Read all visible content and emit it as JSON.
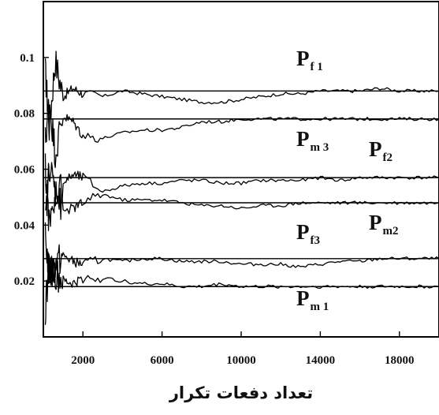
{
  "chart_data": {
    "type": "line",
    "title": "",
    "xlabel": "تعداد دفعات تکرار",
    "ylabel": "",
    "xlim": [
      0,
      20000
    ],
    "ylim": [
      0,
      0.12
    ],
    "x_ticks": [
      2000,
      6000,
      10000,
      14000,
      18000
    ],
    "y_ticks": [
      0.02,
      0.04,
      0.06,
      0.08,
      0.1
    ],
    "x_tick_labels": [
      "2000",
      "6000",
      "10000",
      "14000",
      "18000"
    ],
    "y_tick_labels": [
      "0.02",
      "0.04",
      "0.06",
      "0.08",
      "0.1"
    ],
    "grid": false,
    "legend": "inline labels",
    "reference_lines": [
      0.088,
      0.078,
      0.057,
      0.048,
      0.028,
      0.018
    ],
    "series": [
      {
        "name": "Pf1",
        "label_main": "P",
        "label_sub": "f 1",
        "x": [
          100,
          300,
          600,
          1000,
          1500,
          2000,
          3000,
          4000,
          5000,
          6000,
          7000,
          8000,
          9000,
          10000,
          11000,
          12000,
          13000,
          14000,
          15000,
          16000,
          17000,
          18000,
          19000,
          20000
        ],
        "values": [
          0.095,
          0.075,
          0.099,
          0.086,
          0.089,
          0.087,
          0.086,
          0.088,
          0.087,
          0.086,
          0.085,
          0.084,
          0.084,
          0.085,
          0.086,
          0.087,
          0.087,
          0.088,
          0.088,
          0.088,
          0.089,
          0.088,
          0.088,
          0.088
        ]
      },
      {
        "name": "Pm3",
        "label_main": "P",
        "label_sub": "m 3",
        "x": [
          100,
          300,
          600,
          1000,
          1500,
          2000,
          3000,
          4000,
          5000,
          6000,
          7000,
          8000,
          9000,
          10000,
          11000,
          12000,
          13000,
          14000,
          15000,
          16000,
          17000,
          18000,
          19000,
          20000
        ],
        "values": [
          0.07,
          0.085,
          0.066,
          0.079,
          0.077,
          0.072,
          0.071,
          0.073,
          0.074,
          0.074,
          0.075,
          0.077,
          0.077,
          0.078,
          0.078,
          0.078,
          0.078,
          0.078,
          0.078,
          0.078,
          0.078,
          0.078,
          0.078,
          0.078
        ]
      },
      {
        "name": "Pf2",
        "label_main": "P",
        "label_sub": "f2",
        "x": [
          100,
          300,
          600,
          1000,
          1500,
          2000,
          3000,
          4000,
          5000,
          6000,
          7000,
          8000,
          9000,
          10000,
          11000,
          12000,
          13000,
          14000,
          15000,
          16000,
          17000,
          18000,
          19000,
          20000
        ],
        "values": [
          0.04,
          0.062,
          0.052,
          0.055,
          0.058,
          0.057,
          0.052,
          0.054,
          0.055,
          0.055,
          0.056,
          0.056,
          0.055,
          0.055,
          0.056,
          0.056,
          0.056,
          0.057,
          0.056,
          0.057,
          0.057,
          0.057,
          0.057,
          0.057
        ]
      },
      {
        "name": "Pm2",
        "label_main": "P",
        "label_sub": "m2",
        "x": [
          100,
          300,
          600,
          1000,
          1500,
          2000,
          3000,
          4000,
          5000,
          6000,
          7000,
          8000,
          9000,
          10000,
          11000,
          12000,
          13000,
          14000,
          15000,
          16000,
          17000,
          18000,
          19000,
          20000
        ],
        "values": [
          0.06,
          0.04,
          0.052,
          0.045,
          0.046,
          0.048,
          0.051,
          0.049,
          0.049,
          0.049,
          0.048,
          0.047,
          0.047,
          0.046,
          0.047,
          0.047,
          0.048,
          0.048,
          0.048,
          0.048,
          0.048,
          0.048,
          0.048,
          0.048
        ]
      },
      {
        "name": "Pf3",
        "label_main": "P",
        "label_sub": "f3",
        "x": [
          100,
          300,
          600,
          1000,
          1500,
          2000,
          3000,
          4000,
          5000,
          6000,
          7000,
          8000,
          9000,
          10000,
          11000,
          12000,
          13000,
          14000,
          15000,
          16000,
          17000,
          18000,
          19000,
          20000
        ],
        "values": [
          0.035,
          0.023,
          0.026,
          0.029,
          0.027,
          0.026,
          0.028,
          0.027,
          0.028,
          0.028,
          0.027,
          0.027,
          0.027,
          0.026,
          0.026,
          0.026,
          0.025,
          0.026,
          0.027,
          0.027,
          0.028,
          0.028,
          0.028,
          0.028
        ]
      },
      {
        "name": "Pm1",
        "label_main": "P",
        "label_sub": "m 1",
        "x": [
          100,
          300,
          600,
          1000,
          1500,
          2000,
          3000,
          4000,
          5000,
          6000,
          7000,
          8000,
          9000,
          10000,
          11000,
          12000,
          13000,
          14000,
          15000,
          16000,
          17000,
          18000,
          19000,
          20000
        ],
        "values": [
          0.01,
          0.025,
          0.022,
          0.02,
          0.019,
          0.021,
          0.021,
          0.02,
          0.019,
          0.019,
          0.018,
          0.018,
          0.019,
          0.018,
          0.018,
          0.018,
          0.018,
          0.018,
          0.018,
          0.018,
          0.018,
          0.018,
          0.018,
          0.018
        ]
      }
    ]
  }
}
